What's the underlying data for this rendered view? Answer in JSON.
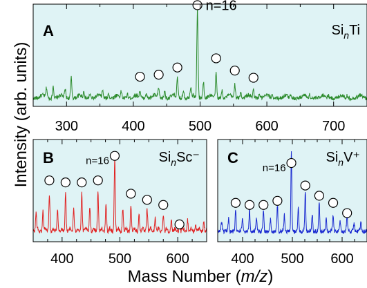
{
  "figure": {
    "ylabel": "Intensity (arb. units)",
    "xlabel_prefix": "Mass Number (",
    "xlabel_italic": "m/z",
    "xlabel_suffix": ")"
  },
  "chart_data": [
    {
      "type": "line",
      "panel": "A",
      "label_base": "Si",
      "label_sub": "n",
      "label_tail": "Ti",
      "color": "#2a8a2a",
      "background": "#dff3f5",
      "xlim": [
        250,
        750
      ],
      "xticks": [
        300,
        400,
        500,
        600,
        700
      ],
      "ylim": [
        0,
        100
      ],
      "marker_label": "n=16",
      "marker_label_x": 496,
      "baseline": 6,
      "spacing": 28,
      "peaks": [
        {
          "x": 270,
          "y": 16
        },
        {
          "x": 280,
          "y": 18
        },
        {
          "x": 298,
          "y": 14
        },
        {
          "x": 307,
          "y": 26
        },
        {
          "x": 326,
          "y": 12
        },
        {
          "x": 335,
          "y": 10
        },
        {
          "x": 354,
          "y": 13
        },
        {
          "x": 363,
          "y": 11
        },
        {
          "x": 382,
          "y": 12
        },
        {
          "x": 391,
          "y": 10
        },
        {
          "x": 410,
          "y": 13
        },
        {
          "x": 419,
          "y": 11
        },
        {
          "x": 438,
          "y": 15
        },
        {
          "x": 447,
          "y": 13
        },
        {
          "x": 466,
          "y": 25
        },
        {
          "x": 475,
          "y": 14
        },
        {
          "x": 486,
          "y": 15
        },
        {
          "x": 496,
          "y": 93
        },
        {
          "x": 505,
          "y": 22
        },
        {
          "x": 524,
          "y": 30
        },
        {
          "x": 533,
          "y": 14
        },
        {
          "x": 552,
          "y": 20
        },
        {
          "x": 561,
          "y": 12
        },
        {
          "x": 580,
          "y": 14
        },
        {
          "x": 589,
          "y": 10
        },
        {
          "x": 608,
          "y": 10
        },
        {
          "x": 636,
          "y": 10
        },
        {
          "x": 664,
          "y": 9
        },
        {
          "x": 692,
          "y": 9
        },
        {
          "x": 720,
          "y": 8
        }
      ],
      "markers": [
        {
          "x": 410,
          "y": 29
        },
        {
          "x": 438,
          "y": 31
        },
        {
          "x": 466,
          "y": 38
        },
        {
          "x": 496,
          "y": 99
        },
        {
          "x": 524,
          "y": 47
        },
        {
          "x": 552,
          "y": 35
        },
        {
          "x": 580,
          "y": 28
        }
      ]
    },
    {
      "type": "line",
      "panel": "B",
      "label_base": "Si",
      "label_sub": "n",
      "label_tail": "Sc⁻",
      "color": "#e02020",
      "background": "#dff3f5",
      "xlim": [
        350,
        650
      ],
      "xticks": [
        400,
        500,
        600
      ],
      "ylim": [
        0,
        100
      ],
      "marker_label": "n=16",
      "marker_label_x": 491,
      "baseline": 8,
      "spacing": 14,
      "peaks": [
        {
          "x": 355,
          "y": 25
        },
        {
          "x": 367,
          "y": 28
        },
        {
          "x": 378,
          "y": 45
        },
        {
          "x": 392,
          "y": 30
        },
        {
          "x": 406,
          "y": 45
        },
        {
          "x": 420,
          "y": 30
        },
        {
          "x": 434,
          "y": 45
        },
        {
          "x": 448,
          "y": 32
        },
        {
          "x": 462,
          "y": 48
        },
        {
          "x": 476,
          "y": 35
        },
        {
          "x": 491,
          "y": 80
        },
        {
          "x": 505,
          "y": 30
        },
        {
          "x": 519,
          "y": 35
        },
        {
          "x": 533,
          "y": 25
        },
        {
          "x": 547,
          "y": 30
        },
        {
          "x": 561,
          "y": 22
        },
        {
          "x": 575,
          "y": 25
        },
        {
          "x": 589,
          "y": 18
        },
        {
          "x": 603,
          "y": 15
        },
        {
          "x": 617,
          "y": 20
        },
        {
          "x": 631,
          "y": 14
        },
        {
          "x": 645,
          "y": 17
        }
      ],
      "markers": [
        {
          "x": 378,
          "y": 60
        },
        {
          "x": 406,
          "y": 58
        },
        {
          "x": 434,
          "y": 58
        },
        {
          "x": 462,
          "y": 60
        },
        {
          "x": 491,
          "y": 84
        },
        {
          "x": 519,
          "y": 47
        },
        {
          "x": 547,
          "y": 41
        },
        {
          "x": 575,
          "y": 36
        },
        {
          "x": 603,
          "y": 17
        }
      ]
    },
    {
      "type": "line",
      "panel": "C",
      "label_base": "Si",
      "label_sub": "n",
      "label_tail": "V⁺",
      "color": "#1a2ad0",
      "background": "#dff3f5",
      "xlim": [
        350,
        650
      ],
      "xticks": [
        400,
        500,
        600
      ],
      "ylim": [
        0,
        100
      ],
      "marker_label": "n=16",
      "marker_label_x": 498,
      "baseline": 8,
      "spacing": 14,
      "peaks": [
        {
          "x": 358,
          "y": 15
        },
        {
          "x": 372,
          "y": 18
        },
        {
          "x": 386,
          "y": 28
        },
        {
          "x": 400,
          "y": 18
        },
        {
          "x": 414,
          "y": 28
        },
        {
          "x": 428,
          "y": 18
        },
        {
          "x": 442,
          "y": 28
        },
        {
          "x": 456,
          "y": 18
        },
        {
          "x": 470,
          "y": 32
        },
        {
          "x": 484,
          "y": 22
        },
        {
          "x": 498,
          "y": 85
        },
        {
          "x": 512,
          "y": 28
        },
        {
          "x": 526,
          "y": 45
        },
        {
          "x": 540,
          "y": 22
        },
        {
          "x": 554,
          "y": 35
        },
        {
          "x": 568,
          "y": 18
        },
        {
          "x": 582,
          "y": 22
        },
        {
          "x": 596,
          "y": 15
        },
        {
          "x": 610,
          "y": 20
        },
        {
          "x": 624,
          "y": 14
        },
        {
          "x": 638,
          "y": 14
        }
      ],
      "markers": [
        {
          "x": 386,
          "y": 38
        },
        {
          "x": 414,
          "y": 36
        },
        {
          "x": 442,
          "y": 36
        },
        {
          "x": 470,
          "y": 40
        },
        {
          "x": 498,
          "y": 77
        },
        {
          "x": 526,
          "y": 55
        },
        {
          "x": 554,
          "y": 45
        },
        {
          "x": 582,
          "y": 38
        },
        {
          "x": 610,
          "y": 28
        }
      ]
    }
  ]
}
